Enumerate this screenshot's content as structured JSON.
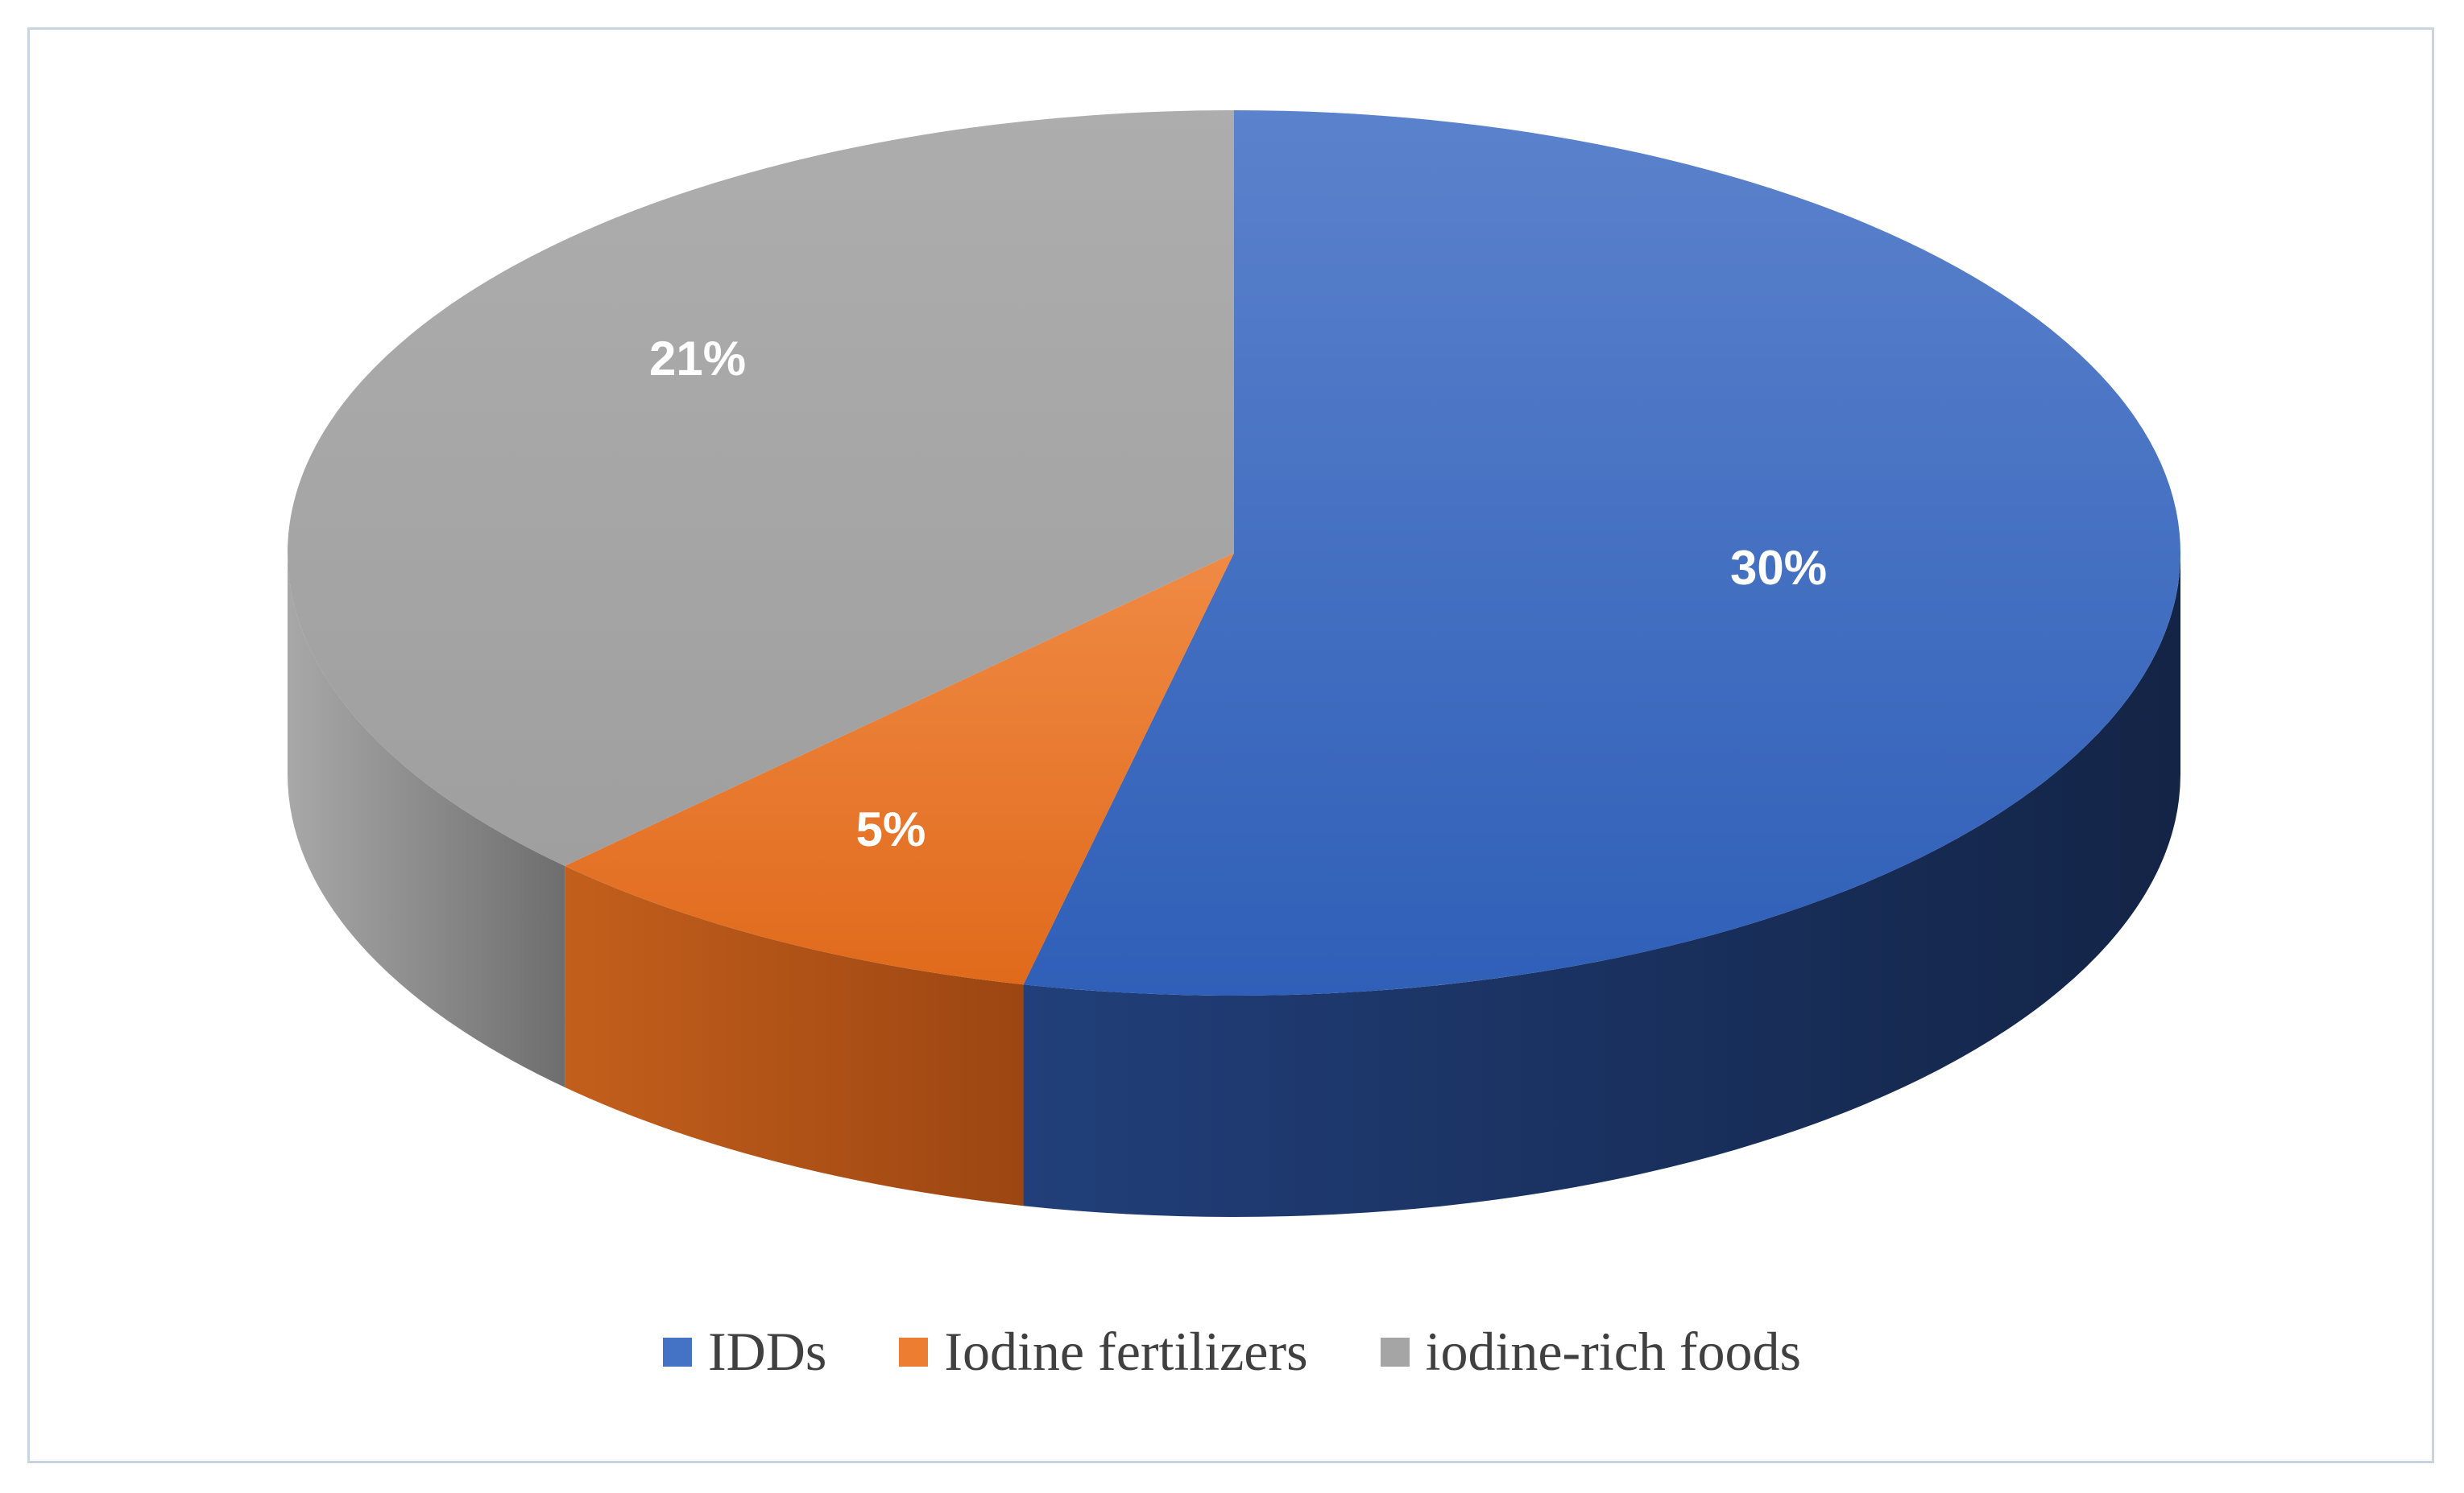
{
  "chart_data": {
    "type": "pie",
    "style": "3d",
    "categories": [
      "IDDs",
      "Iodine fertilizers",
      "iodine-rich foods"
    ],
    "values": [
      30,
      5,
      21
    ],
    "data_labels": [
      "30%",
      "5%",
      "21%"
    ],
    "colors": [
      "#4472c4",
      "#ed7d31",
      "#a5a5a5"
    ],
    "legend_position": "bottom"
  }
}
